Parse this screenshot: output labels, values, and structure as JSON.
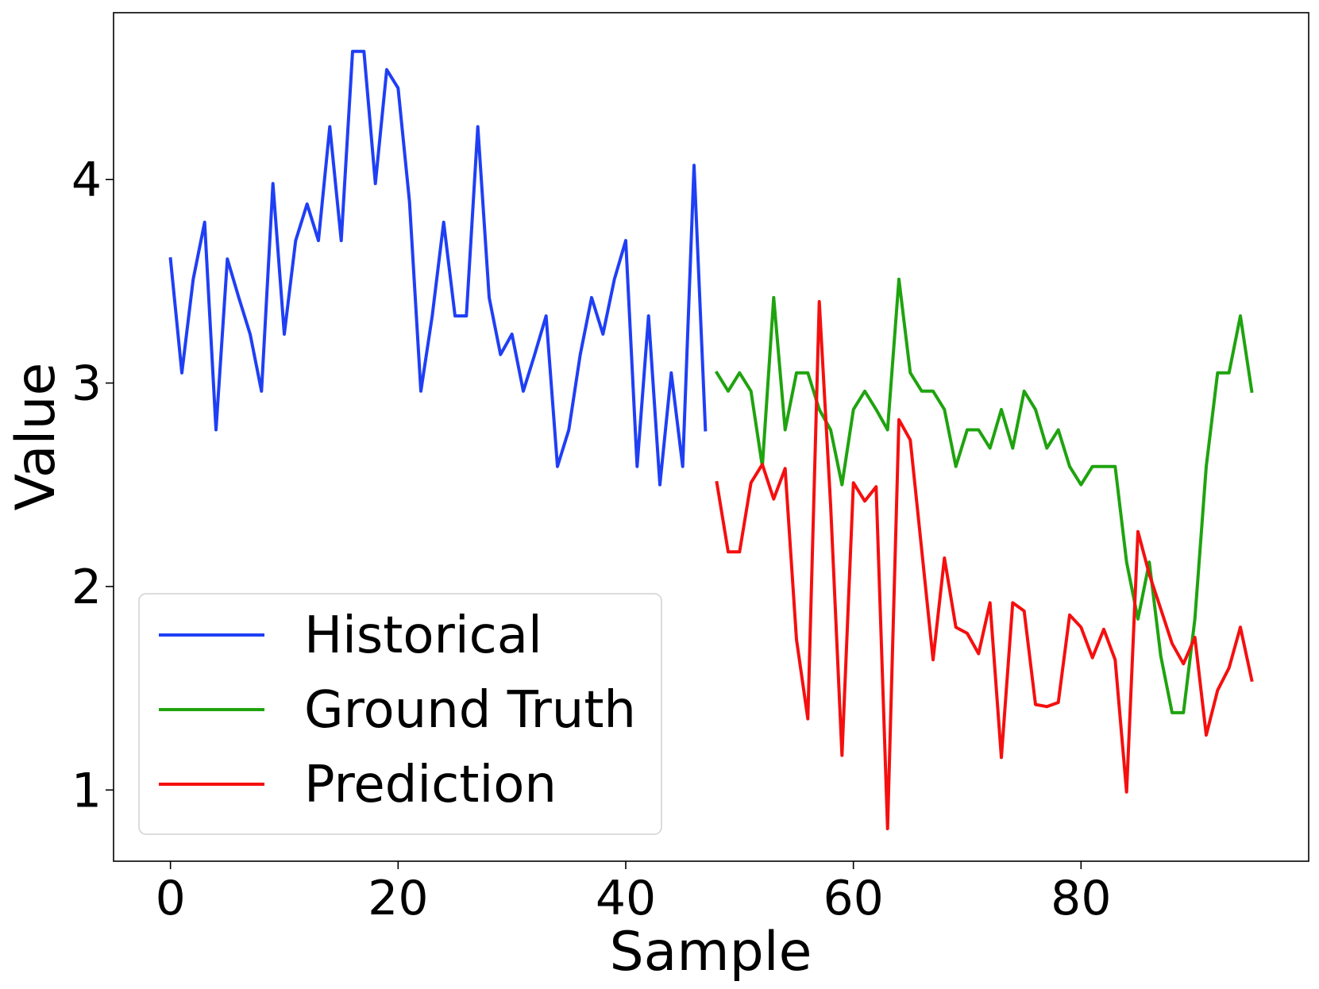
{
  "chart_data": {
    "type": "line",
    "xlabel": "Sample",
    "ylabel": "Value",
    "xlim": [
      -5,
      100
    ],
    "ylim": [
      0.65,
      4.82
    ],
    "x_ticks": [
      0,
      20,
      40,
      60,
      80
    ],
    "y_ticks": [
      1,
      2,
      3,
      4
    ],
    "grid": false,
    "legend_position": "lower-left",
    "series": [
      {
        "name": "Historical",
        "color": "#1f3ff5",
        "x_start": 0,
        "values": [
          3.61,
          3.05,
          3.51,
          3.79,
          2.77,
          3.61,
          3.42,
          3.24,
          2.96,
          3.98,
          3.24,
          3.7,
          3.88,
          3.7,
          4.26,
          3.7,
          4.63,
          4.63,
          3.98,
          4.54,
          4.45,
          3.89,
          2.96,
          3.33,
          3.79,
          3.33,
          3.33,
          4.26,
          3.42,
          3.14,
          3.24,
          2.96,
          3.14,
          3.33,
          2.59,
          2.77,
          3.14,
          3.42,
          3.24,
          3.51,
          3.7,
          2.59,
          3.33,
          2.5,
          3.05,
          2.59,
          4.07,
          2.77
        ]
      },
      {
        "name": "Ground Truth",
        "color": "#1fa30f",
        "x_start": 48,
        "values": [
          3.05,
          2.96,
          3.05,
          2.96,
          2.59,
          3.42,
          2.77,
          3.05,
          3.05,
          2.87,
          2.77,
          2.5,
          2.87,
          2.96,
          2.87,
          2.77,
          3.51,
          3.05,
          2.96,
          2.96,
          2.87,
          2.59,
          2.77,
          2.77,
          2.68,
          2.87,
          2.68,
          2.96,
          2.87,
          2.68,
          2.77,
          2.59,
          2.5,
          2.59,
          2.59,
          2.59,
          2.12,
          1.84,
          2.12,
          1.66,
          1.38,
          1.38,
          1.84,
          2.59,
          3.05,
          3.05,
          3.33,
          2.96
        ]
      },
      {
        "name": "Prediction",
        "color": "#f50f0f",
        "x_start": 48,
        "values": [
          2.51,
          2.17,
          2.17,
          2.51,
          2.6,
          2.43,
          2.58,
          1.74,
          1.35,
          3.4,
          2.4,
          1.17,
          2.51,
          2.42,
          2.49,
          0.81,
          2.82,
          2.72,
          2.18,
          1.64,
          2.14,
          1.8,
          1.77,
          1.67,
          1.92,
          1.16,
          1.92,
          1.88,
          1.42,
          1.41,
          1.43,
          1.86,
          1.8,
          1.65,
          1.79,
          1.64,
          0.99,
          2.27,
          2.06,
          1.89,
          1.72,
          1.62,
          1.75,
          1.27,
          1.49,
          1.6,
          1.8,
          1.54
        ]
      }
    ]
  }
}
